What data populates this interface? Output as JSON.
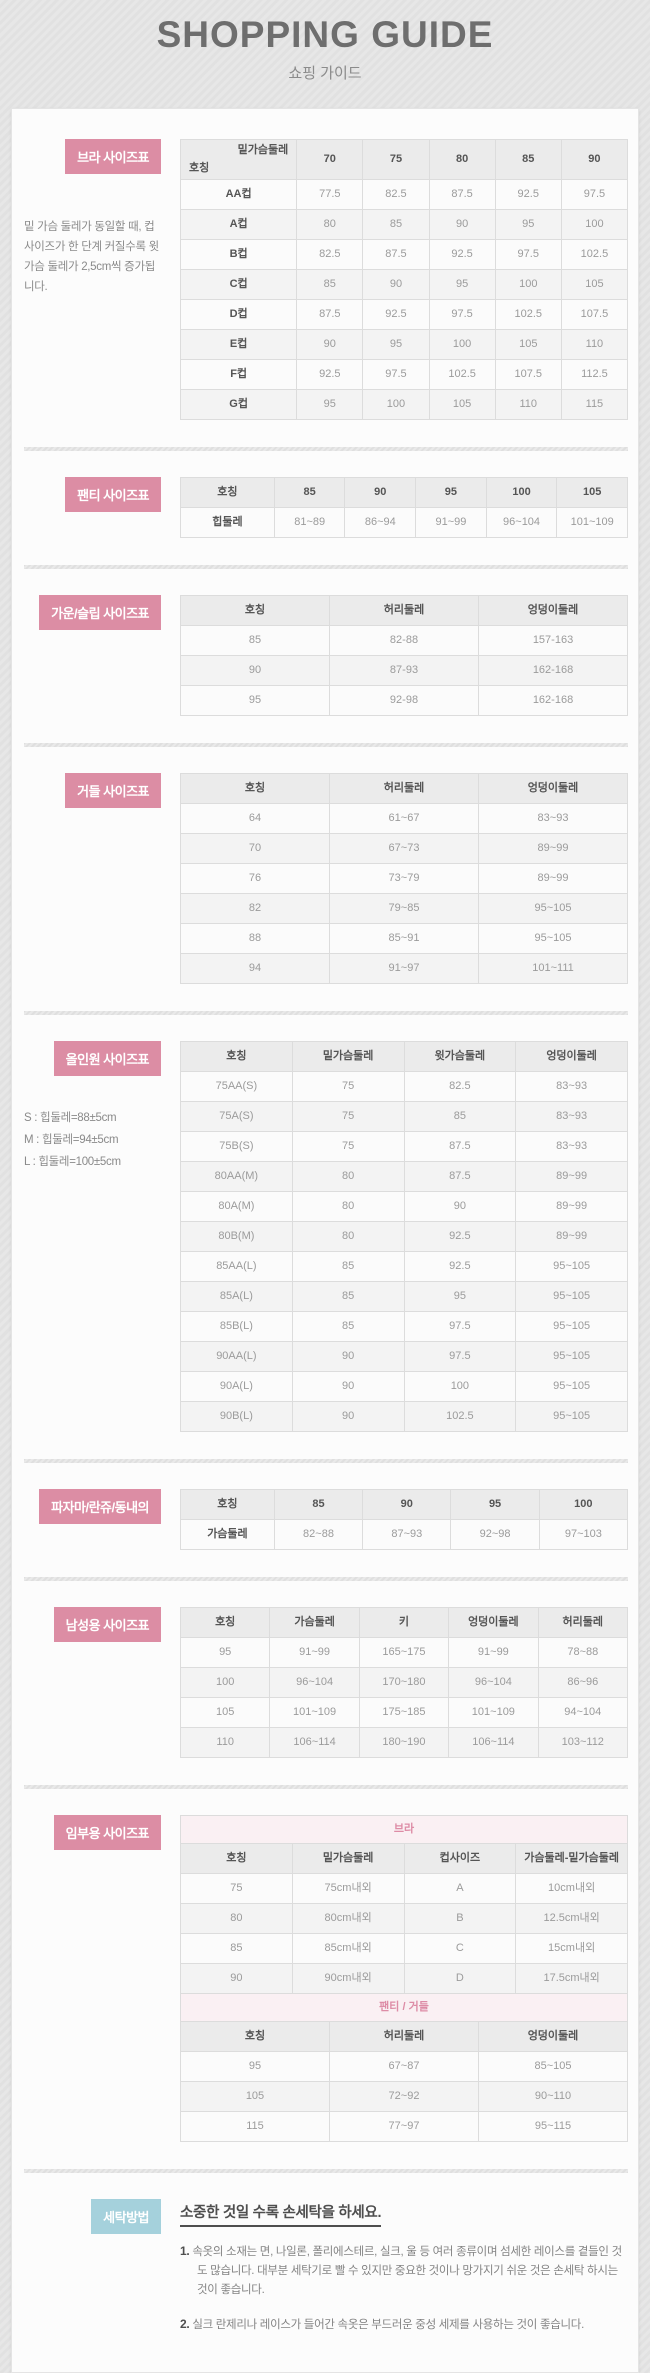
{
  "header": {
    "title": "SHOPPING GUIDE",
    "subtitle": "쇼핑 가이드"
  },
  "colors": {
    "accent_pink": "#dc8da4",
    "accent_blue": "#a5d1dc",
    "band_pink_bg": "#faf0f3",
    "band_pink_text": "#dd8ca6"
  },
  "bra": {
    "label": "브라 사이즈표",
    "note": "밑 가슴 둘레가 동일할 때, 컵 사이즈가 한 단계 커질수록 윗 가슴 둘레가 2,5cm씩 증가됩니다.",
    "diag_top": "밑가슴둘레",
    "diag_bottom": "호칭",
    "columns": [
      "70",
      "75",
      "80",
      "85",
      "90"
    ],
    "rows": [
      [
        "AA컵",
        "77.5",
        "82.5",
        "87.5",
        "92.5",
        "97.5"
      ],
      [
        "A컵",
        "80",
        "85",
        "90",
        "95",
        "100"
      ],
      [
        "B컵",
        "82.5",
        "87.5",
        "92.5",
        "97.5",
        "102.5"
      ],
      [
        "C컵",
        "85",
        "90",
        "95",
        "100",
        "105"
      ],
      [
        "D컵",
        "87.5",
        "92.5",
        "97.5",
        "102.5",
        "107.5"
      ],
      [
        "E컵",
        "90",
        "95",
        "100",
        "105",
        "110"
      ],
      [
        "F컵",
        "92.5",
        "97.5",
        "102.5",
        "107.5",
        "112.5"
      ],
      [
        "G컵",
        "95",
        "100",
        "105",
        "110",
        "115"
      ]
    ]
  },
  "panty": {
    "label": "팬티 사이즈표",
    "columns": [
      "호칭",
      "85",
      "90",
      "95",
      "100",
      "105"
    ],
    "rows": [
      [
        "힙둘레",
        "81~89",
        "86~94",
        "91~99",
        "96~104",
        "101~109"
      ]
    ]
  },
  "gown": {
    "label": "가운/슬립 사이즈표",
    "columns": [
      "호칭",
      "허리둘레",
      "엉덩이둘레"
    ],
    "rows": [
      [
        "85",
        "82-88",
        "157-163"
      ],
      [
        "90",
        "87-93",
        "162-168"
      ],
      [
        "95",
        "92-98",
        "162-168"
      ]
    ]
  },
  "girdle": {
    "label": "거들 사이즈표",
    "columns": [
      "호칭",
      "허리둘레",
      "엉덩이둘레"
    ],
    "rows": [
      [
        "64",
        "61~67",
        "83~93"
      ],
      [
        "70",
        "67~73",
        "89~99"
      ],
      [
        "76",
        "73~79",
        "89~99"
      ],
      [
        "82",
        "79~85",
        "95~105"
      ],
      [
        "88",
        "85~91",
        "95~105"
      ],
      [
        "94",
        "91~97",
        "101~111"
      ]
    ]
  },
  "allinone": {
    "label": "올인원 사이즈표",
    "notes": [
      "S : 힙둘레=88±5cm",
      "M : 힙둘레=94±5cm",
      "L : 힙둘레=100±5cm"
    ],
    "columns": [
      "호칭",
      "밑가슴둘레",
      "윗가슴둘레",
      "엉덩이둘레"
    ],
    "rows": [
      [
        "75AA(S)",
        "75",
        "82.5",
        "83~93"
      ],
      [
        "75A(S)",
        "75",
        "85",
        "83~93"
      ],
      [
        "75B(S)",
        "75",
        "87.5",
        "83~93"
      ],
      [
        "80AA(M)",
        "80",
        "87.5",
        "89~99"
      ],
      [
        "80A(M)",
        "80",
        "90",
        "89~99"
      ],
      [
        "80B(M)",
        "80",
        "92.5",
        "89~99"
      ],
      [
        "85AA(L)",
        "85",
        "92.5",
        "95~105"
      ],
      [
        "85A(L)",
        "85",
        "95",
        "95~105"
      ],
      [
        "85B(L)",
        "85",
        "97.5",
        "95~105"
      ],
      [
        "90AA(L)",
        "90",
        "97.5",
        "95~105"
      ],
      [
        "90A(L)",
        "90",
        "100",
        "95~105"
      ],
      [
        "90B(L)",
        "90",
        "102.5",
        "95~105"
      ]
    ]
  },
  "pajama": {
    "label": "파자마/란쥬/동내의",
    "columns": [
      "호칭",
      "85",
      "90",
      "95",
      "100"
    ],
    "rows": [
      [
        "가슴둘레",
        "82~88",
        "87~93",
        "92~98",
        "97~103"
      ]
    ]
  },
  "mens": {
    "label": "남성용 사이즈표",
    "columns": [
      "호칭",
      "가슴둘레",
      "키",
      "엉덩이둘레",
      "허리둘레"
    ],
    "rows": [
      [
        "95",
        "91~99",
        "165~175",
        "91~99",
        "78~88"
      ],
      [
        "100",
        "96~104",
        "170~180",
        "96~104",
        "86~96"
      ],
      [
        "105",
        "101~109",
        "175~185",
        "101~109",
        "94~104"
      ],
      [
        "110",
        "106~114",
        "180~190",
        "106~114",
        "103~112"
      ]
    ]
  },
  "maternity": {
    "label": "임부용 사이즈표",
    "tables": [
      {
        "band": "브라",
        "columns": [
          "호칭",
          "밑가슴둘레",
          "컵사이즈",
          "가슴둘레-밑가슴둘레"
        ],
        "rows": [
          [
            "75",
            "75cm내외",
            "A",
            "10cm내외"
          ],
          [
            "80",
            "80cm내외",
            "B",
            "12.5cm내외"
          ],
          [
            "85",
            "85cm내외",
            "C",
            "15cm내외"
          ],
          [
            "90",
            "90cm내외",
            "D",
            "17.5cm내외"
          ]
        ]
      },
      {
        "band": "팬티 / 거들",
        "columns": [
          "호칭",
          "허리둘레",
          "엉덩이둘레"
        ],
        "rows": [
          [
            "95",
            "67~87",
            "85~105"
          ],
          [
            "105",
            "72~92",
            "90~110"
          ],
          [
            "115",
            "77~97",
            "95~115"
          ]
        ]
      }
    ]
  },
  "washing": {
    "label": "세탁방법",
    "title": "소중한 것일 수록 손세탁을 하세요.",
    "items": [
      {
        "num": "1.",
        "text": "속옷의 소재는 면, 나일론, 폴리에스테르, 실크, 울 등 여러 종류이며 섬세한 레이스를 곁들인 것도 많습니다. 대부분 세탁기로 빨 수 있지만 중요한 것이나 망가지기 쉬운 것은 손세탁 하시는 것이 좋습니다."
      },
      {
        "num": "2.",
        "text": "실크 란제리나 레이스가 들어간 속옷은 부드러운 중성 세제를 사용하는 것이 좋습니다."
      }
    ]
  }
}
